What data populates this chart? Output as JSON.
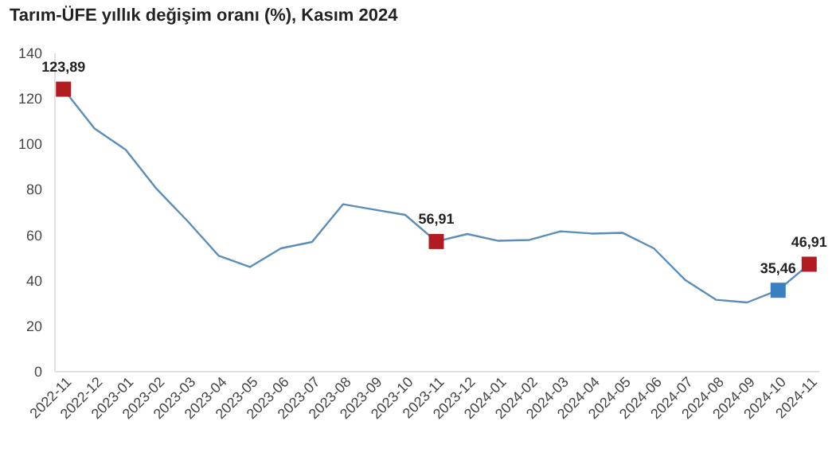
{
  "chart_data": {
    "type": "line",
    "title": "Tarım-ÜFE yıllık değişim oranı (%), Kasım 2024",
    "categories": [
      "2022-11",
      "2022-12",
      "2023-01",
      "2023-02",
      "2023-03",
      "2023-04",
      "2023-05",
      "2023-06",
      "2023-07",
      "2023-08",
      "2023-09",
      "2023-10",
      "2023-11",
      "2023-12",
      "2024-01",
      "2024-02",
      "2024-03",
      "2024-04",
      "2024-05",
      "2024-06",
      "2024-07",
      "2024-08",
      "2024-09",
      "2024-10",
      "2024-11"
    ],
    "series": [
      {
        "color": "#5b8db8",
        "marker": "none",
        "values": [
          123.89,
          106.6,
          97.3,
          80,
          65.8,
          50.6,
          45.7,
          53.9,
          56.7,
          73.3,
          70.9,
          68.6,
          56.91,
          60.2,
          57.2,
          57.6,
          61.4,
          60.4,
          60.7,
          53.9,
          40.1,
          31.3,
          30.1,
          35.46,
          46.91
        ]
      },
      {
        "type": "scatter",
        "marker": "square",
        "colors": [
          "#b01c22",
          null,
          null,
          null,
          null,
          null,
          null,
          null,
          null,
          null,
          null,
          null,
          "#b01c22",
          null,
          null,
          null,
          null,
          null,
          null,
          null,
          null,
          null,
          null,
          "#3a7fc1",
          "#b01c22"
        ],
        "values": [
          123.89,
          null,
          null,
          null,
          null,
          null,
          null,
          null,
          null,
          null,
          null,
          null,
          56.91,
          null,
          null,
          null,
          null,
          null,
          null,
          null,
          null,
          null,
          null,
          35.46,
          46.91
        ],
        "value_labels": [
          "123,89",
          null,
          null,
          null,
          null,
          null,
          null,
          null,
          null,
          null,
          null,
          null,
          "56,91",
          null,
          null,
          null,
          null,
          null,
          null,
          null,
          null,
          null,
          null,
          "35,46",
          "46,91"
        ]
      }
    ],
    "ylim": [
      0,
      140
    ],
    "yticks": [
      0,
      20,
      40,
      60,
      80,
      100,
      120,
      140
    ],
    "grid": false
  }
}
